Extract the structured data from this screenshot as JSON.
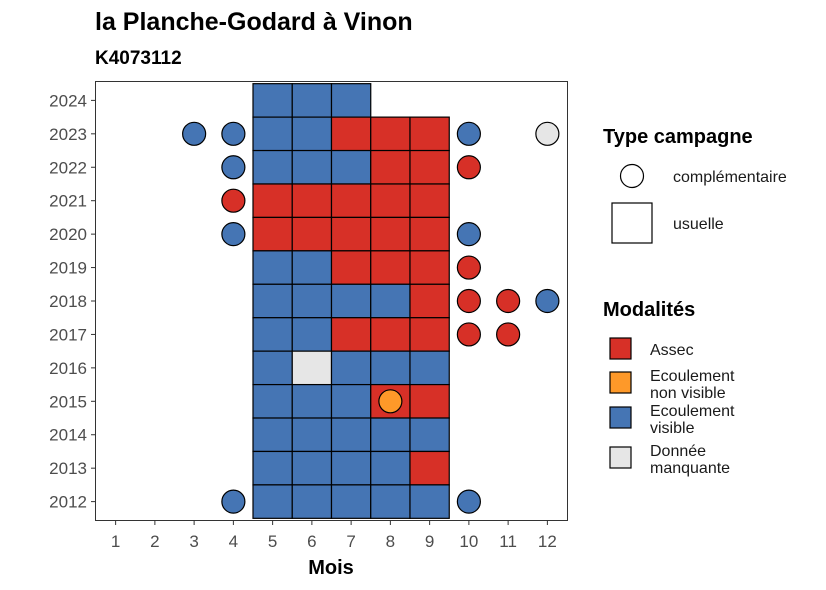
{
  "chart_data": {
    "type": "heatmap",
    "title": "la Planche-Godard à Vinon",
    "subtitle": "K4073112",
    "xlabel": "Mois",
    "ylabel": "",
    "x_ticks": [
      "1",
      "2",
      "3",
      "4",
      "5",
      "6",
      "7",
      "8",
      "9",
      "10",
      "11",
      "12"
    ],
    "y_ticks": [
      "2012",
      "2013",
      "2014",
      "2015",
      "2016",
      "2017",
      "2018",
      "2019",
      "2020",
      "2021",
      "2022",
      "2023",
      "2024"
    ],
    "xlim": [
      0.5,
      12.5
    ],
    "ylim": [
      2011.45,
      2024.55
    ],
    "grid": false,
    "modalites": {
      "A": {
        "label": "Assec",
        "color": "#d73027"
      },
      "N": {
        "label": "Ecoulement\nnon visible",
        "color": "#fe9929"
      },
      "V": {
        "label": "Ecoulement\nvisible",
        "color": "#4575b4"
      },
      "M": {
        "label": "Donnée\nmanquante",
        "color": "#e6e6e6"
      }
    },
    "usuelle": [
      {
        "year": 2024,
        "months": [
          5,
          6,
          7
        ],
        "values": [
          "V",
          "V",
          "V"
        ]
      },
      {
        "year": 2023,
        "months": [
          5,
          6,
          7,
          8,
          9
        ],
        "values": [
          "V",
          "V",
          "A",
          "A",
          "A"
        ]
      },
      {
        "year": 2022,
        "months": [
          5,
          6,
          7,
          8,
          9
        ],
        "values": [
          "V",
          "V",
          "V",
          "A",
          "A"
        ]
      },
      {
        "year": 2021,
        "months": [
          5,
          6,
          7,
          8,
          9
        ],
        "values": [
          "A",
          "A",
          "A",
          "A",
          "A"
        ]
      },
      {
        "year": 2020,
        "months": [
          5,
          6,
          7,
          8,
          9
        ],
        "values": [
          "A",
          "A",
          "A",
          "A",
          "A"
        ]
      },
      {
        "year": 2019,
        "months": [
          5,
          6,
          7,
          8,
          9
        ],
        "values": [
          "V",
          "V",
          "A",
          "A",
          "A"
        ]
      },
      {
        "year": 2018,
        "months": [
          5,
          6,
          7,
          8,
          9
        ],
        "values": [
          "V",
          "V",
          "V",
          "V",
          "A"
        ]
      },
      {
        "year": 2017,
        "months": [
          5,
          6,
          7,
          8,
          9
        ],
        "values": [
          "V",
          "V",
          "A",
          "A",
          "A"
        ]
      },
      {
        "year": 2016,
        "months": [
          5,
          6,
          7,
          8,
          9
        ],
        "values": [
          "V",
          "M",
          "V",
          "V",
          "V"
        ]
      },
      {
        "year": 2015,
        "months": [
          5,
          6,
          7,
          8,
          9
        ],
        "values": [
          "V",
          "V",
          "V",
          "A",
          "A"
        ]
      },
      {
        "year": 2014,
        "months": [
          5,
          6,
          7,
          8,
          9
        ],
        "values": [
          "V",
          "V",
          "V",
          "V",
          "V"
        ]
      },
      {
        "year": 2013,
        "months": [
          5,
          6,
          7,
          8,
          9
        ],
        "values": [
          "V",
          "V",
          "V",
          "V",
          "A"
        ]
      },
      {
        "year": 2012,
        "months": [
          5,
          6,
          7,
          8,
          9
        ],
        "values": [
          "V",
          "V",
          "V",
          "V",
          "V"
        ]
      }
    ],
    "complementaire": [
      {
        "year": 2023,
        "month": 3,
        "value": "V"
      },
      {
        "year": 2023,
        "month": 4,
        "value": "V"
      },
      {
        "year": 2023,
        "month": 10,
        "value": "V"
      },
      {
        "year": 2023,
        "month": 12,
        "value": "M"
      },
      {
        "year": 2022,
        "month": 4,
        "value": "V"
      },
      {
        "year": 2022,
        "month": 10,
        "value": "A"
      },
      {
        "year": 2021,
        "month": 4,
        "value": "A"
      },
      {
        "year": 2020,
        "month": 4,
        "value": "V"
      },
      {
        "year": 2020,
        "month": 10,
        "value": "V"
      },
      {
        "year": 2019,
        "month": 10,
        "value": "A"
      },
      {
        "year": 2018,
        "month": 10,
        "value": "A"
      },
      {
        "year": 2018,
        "month": 11,
        "value": "A"
      },
      {
        "year": 2018,
        "month": 12,
        "value": "V"
      },
      {
        "year": 2017,
        "month": 10,
        "value": "A"
      },
      {
        "year": 2017,
        "month": 11,
        "value": "A"
      },
      {
        "year": 2015,
        "month": 8,
        "value": "N"
      },
      {
        "year": 2012,
        "month": 4,
        "value": "V"
      },
      {
        "year": 2012,
        "month": 10,
        "value": "V"
      }
    ],
    "legend": {
      "type_title": "Type campagne",
      "type_items": [
        "complémentaire",
        "usuelle"
      ],
      "modalites_title": "Modalités",
      "modalites_order": [
        "A",
        "N",
        "V",
        "M"
      ],
      "placement": "right"
    }
  }
}
